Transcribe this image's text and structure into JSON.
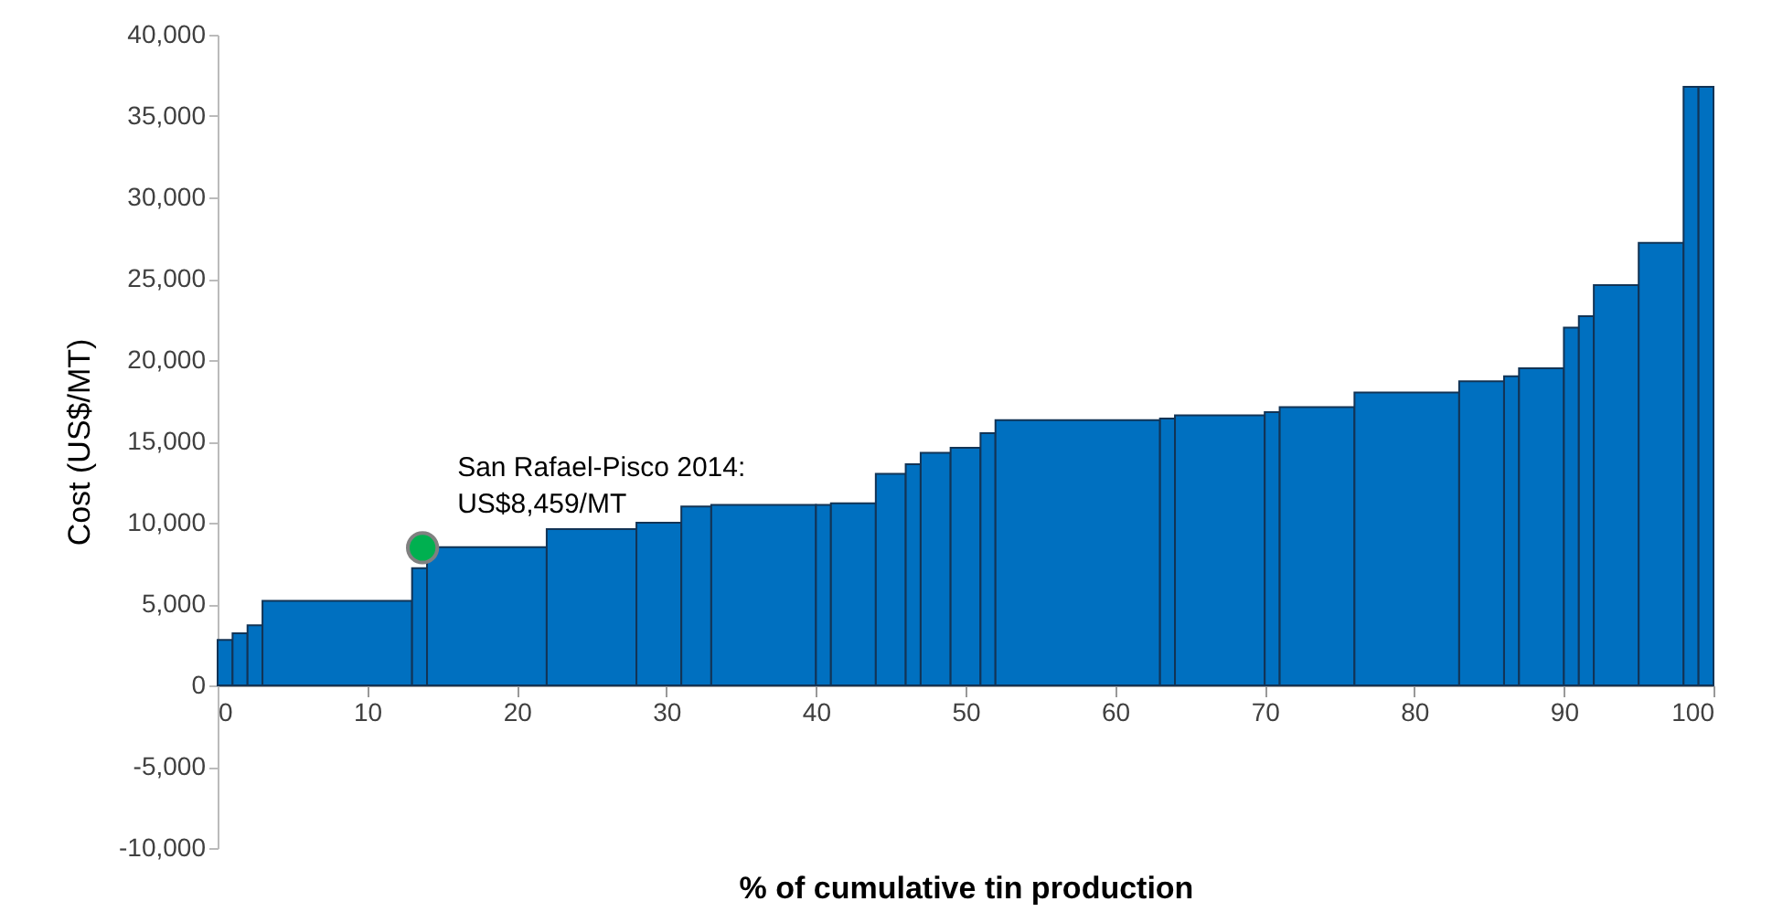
{
  "chart_data": {
    "type": "histogram",
    "xlabel": "% of cumulative tin production",
    "ylabel": "Cost (US$/MT)",
    "bins": [
      0,
      1,
      2,
      3,
      13,
      14,
      22,
      28,
      31,
      33,
      40,
      41,
      44,
      46,
      47,
      49,
      51,
      52,
      63,
      64,
      70,
      71,
      76,
      83,
      86,
      87,
      90,
      91,
      92,
      95,
      98,
      99,
      100
    ],
    "series": [
      {
        "color": "#0070c0",
        "values": [
          2800,
          3200,
          3700,
          5200,
          7200,
          8500,
          9600,
          10000,
          11000,
          11100,
          11100,
          11200,
          13000,
          13600,
          14300,
          14600,
          15500,
          16300,
          16400,
          16600,
          16800,
          17100,
          18000,
          18700,
          19000,
          19500,
          22000,
          22700,
          24600,
          27200,
          36800,
          36800
        ]
      },
      {
        "type": "scatter",
        "x": [
          13.7
        ],
        "values": [
          8459
        ],
        "color": "#00b050"
      }
    ],
    "annotations": [
      {
        "text": "San Rafael-Pisco 2014:\nUS$8,459/MT",
        "x": 13.7,
        "y": 8459
      }
    ],
    "xlim": [
      0,
      100
    ],
    "xticks": [
      0,
      10,
      20,
      30,
      40,
      50,
      60,
      70,
      80,
      90,
      100
    ],
    "ylim": [
      -10000,
      40000
    ],
    "yticks": [
      {
        "value": -10000,
        "label": "-10,000"
      },
      {
        "value": -5000,
        "label": "-5,000"
      },
      0,
      {
        "value": 5000,
        "label": "5,000"
      },
      {
        "value": 10000,
        "label": "10,000"
      },
      {
        "value": 15000,
        "label": "15,000"
      },
      {
        "value": 20000,
        "label": "20,000"
      },
      {
        "value": 25000,
        "label": "25,000"
      },
      {
        "value": 30000,
        "label": "30,000"
      },
      {
        "value": 35000,
        "label": "35,000"
      },
      {
        "value": 40000,
        "label": "40,000"
      }
    ],
    "grid": false
  }
}
